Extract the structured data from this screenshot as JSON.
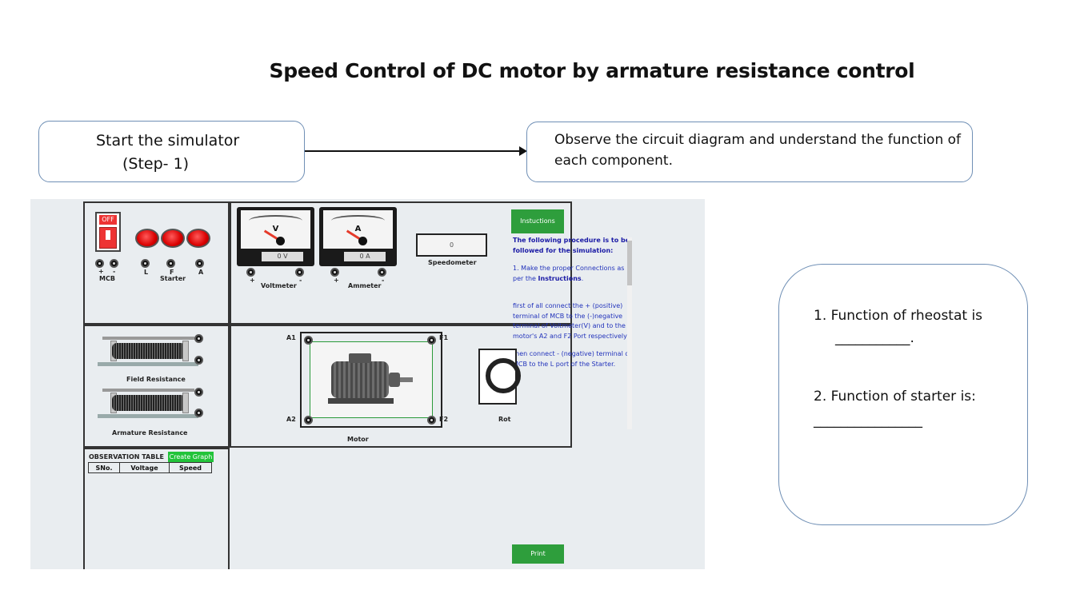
{
  "title": "Speed Control of DC motor by armature resistance control",
  "step1": {
    "line1": "Start the simulator",
    "line2": "(Step- 1)"
  },
  "step2": {
    "text": "Observe the circuit diagram and understand the function of each component."
  },
  "questions": {
    "q1": "1.  Function of rheostat is",
    "q1_blank": "___________.",
    "q2": "2. Function of starter is:",
    "q2_blank": "________________"
  },
  "simulator": {
    "mcb": {
      "switch_label": "OFF",
      "label": "MCB",
      "plus": "+",
      "minus": "-"
    },
    "starter": {
      "label": "Starter",
      "terminals": [
        "L",
        "F",
        "A"
      ]
    },
    "voltmeter": {
      "letter": "V",
      "reading": "0 V",
      "label": "Voltmeter"
    },
    "ammeter": {
      "letter": "A",
      "reading": "0 A",
      "label": "Ammeter"
    },
    "plus": "+",
    "minus": "-",
    "speedometer": {
      "reading": "0",
      "label": "Speedometer"
    },
    "field_resistance": "Field Resistance",
    "armature_resistance": "Armature Resistance",
    "motor": {
      "label": "Motor",
      "a1": "A1",
      "a2": "A2",
      "f1": "F1",
      "f2": "F2"
    },
    "rotor_label": "Rot",
    "instructions_button": "Instuctions",
    "instructions": {
      "intro": "The following procedure is to be followed for the simulation:",
      "step1_prefix": "1. Make the proper Connections as per the ",
      "step1_bold": "Instructions",
      "step1_suffix": ".",
      "p2": "first of all connect the + (positive) terminal of MCB to the (-)negative terminal of Voltmeter(V) and to the motor's A2 and F2 Port respectively .",
      "p3": "then connect - (negative) terminal of MCB to the L port of the Starter."
    },
    "observation_table": {
      "title": "OBSERVATION TABLE",
      "create_graph": "Create Graph",
      "columns": [
        "SNo.",
        "Voltage",
        "Speed"
      ]
    },
    "print_button": "Print"
  }
}
